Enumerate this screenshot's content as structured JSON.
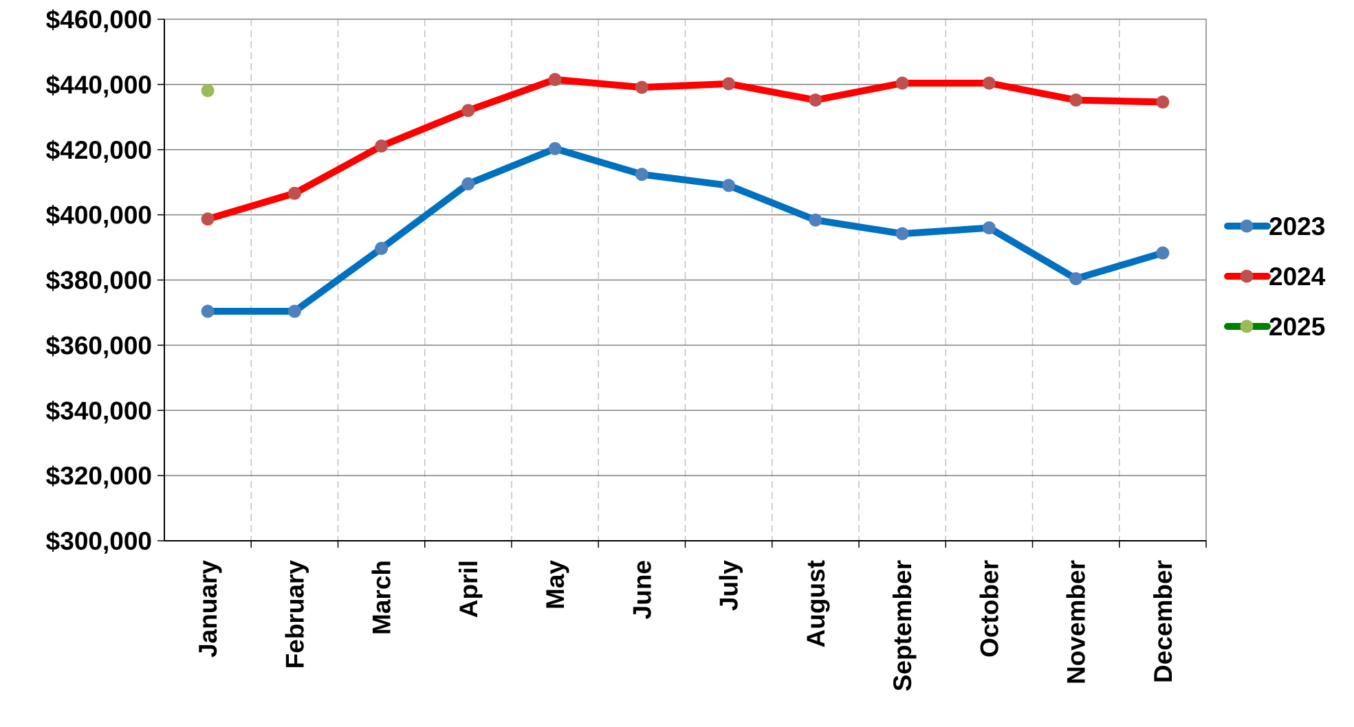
{
  "chart_data": {
    "type": "line",
    "categories": [
      "January",
      "February",
      "March",
      "April",
      "May",
      "June",
      "July",
      "August",
      "September",
      "October",
      "November",
      "December"
    ],
    "series": [
      {
        "name": "2023",
        "color": "#0070c0",
        "marker_color": "#4f81bd",
        "values": [
          370400,
          370400,
          389700,
          409500,
          420300,
          412400,
          409000,
          398400,
          394200,
          396000,
          380400,
          388300
        ]
      },
      {
        "name": "2024",
        "color": "#ff0000",
        "marker_color": "#c0504d",
        "values": [
          398700,
          406600,
          421100,
          432000,
          441500,
          439100,
          440200,
          435200,
          440400,
          440400,
          435200,
          434600
        ]
      },
      {
        "name": "2025",
        "color": "#008000",
        "marker_color": "#9bbb59",
        "values": [
          438100,
          null,
          null,
          null,
          null,
          null,
          null,
          null,
          null,
          null,
          null,
          null
        ]
      }
    ],
    "ylim": [
      300000,
      460000
    ],
    "yticks": [
      {
        "value": 300000,
        "label": "$300,000"
      },
      {
        "value": 320000,
        "label": "$320,000"
      },
      {
        "value": 340000,
        "label": "$340,000"
      },
      {
        "value": 360000,
        "label": "$360,000"
      },
      {
        "value": 380000,
        "label": "$380,000"
      },
      {
        "value": 400000,
        "label": "$400,000"
      },
      {
        "value": 420000,
        "label": "$420,000"
      },
      {
        "value": 440000,
        "label": "$440,000"
      },
      {
        "value": 460000,
        "label": "$460,000"
      }
    ],
    "grid": true,
    "legend": "right"
  }
}
